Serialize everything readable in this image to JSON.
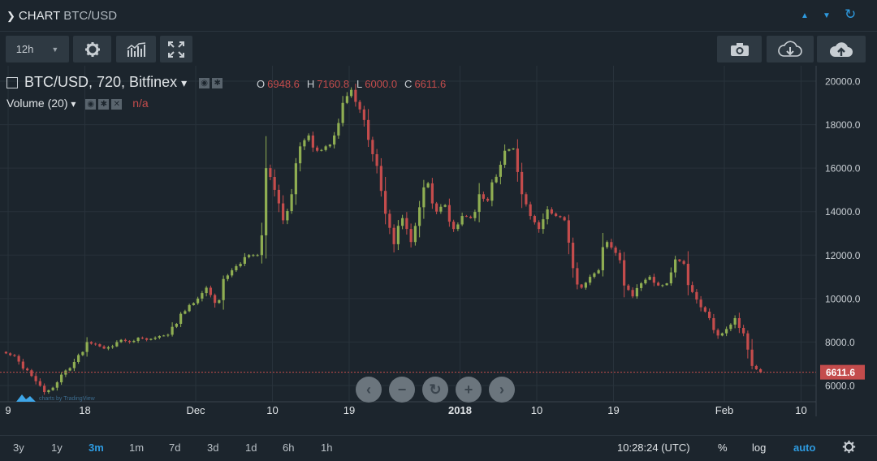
{
  "header": {
    "title": "CHART",
    "symbol": "BTC/USD",
    "controls": {
      "up": "▲",
      "down": "▼",
      "refresh": "↻"
    }
  },
  "toolbar": {
    "interval": "12h",
    "interval_arrow": "▼",
    "settings_icon": "gear-icon",
    "indicators_icon": "indicators-icon",
    "fullscreen_icon": "fullscreen-icon",
    "snapshot_icon": "camera-icon",
    "load_icon": "cloud-download-icon",
    "save_icon": "cloud-upload-icon"
  },
  "legend": {
    "main": "BTC/USD, 720, Bitfinex",
    "main_arrow": "▾",
    "ohlc": [
      {
        "key": "O",
        "value": "6948.6"
      },
      {
        "key": "H",
        "value": "7160.8"
      },
      {
        "key": "L",
        "value": "6000.0"
      },
      {
        "key": "C",
        "value": "6611.6"
      }
    ],
    "volume": "Volume (20)",
    "volume_arrow": "▾",
    "volume_value": "n/a"
  },
  "chart_data": {
    "type": "candlestick",
    "symbol": "BTC/USD",
    "interval": "720",
    "exchange": "Bitfinex",
    "ylim": [
      4700,
      20600
    ],
    "y_ticks": [
      6000,
      8000,
      10000,
      12000,
      14000,
      16000,
      18000,
      20000
    ],
    "y_tick_labels": [
      "6000.0",
      "8000.0",
      "10000.0",
      "12000.0",
      "14000.0",
      "16000.0",
      "18000.0",
      "20000.0"
    ],
    "x_ticks": [
      {
        "label": "9",
        "day": 0
      },
      {
        "label": "18",
        "day": 9
      },
      {
        "label": "Dec",
        "day": 22
      },
      {
        "label": "10",
        "day": 31
      },
      {
        "label": "19",
        "day": 40
      },
      {
        "label": "2018",
        "day": 53
      },
      {
        "label": "10",
        "day": 62
      },
      {
        "label": "19",
        "day": 71
      },
      {
        "label": "Feb",
        "day": 84
      },
      {
        "label": "10",
        "day": 93
      }
    ],
    "last_price": 6611.6,
    "last_price_label": "6611.6",
    "up_color": "#8fae52",
    "down_color": "#c44c4c",
    "closes": [
      7400,
      7100,
      6700,
      6200,
      5700,
      5900,
      6500,
      6800,
      7400,
      8000,
      7900,
      7700,
      7800,
      8100,
      8000,
      8200,
      8100,
      8200,
      8300,
      8700,
      9300,
      9700,
      10000,
      10500,
      9800,
      10900,
      11300,
      11600,
      12000,
      12000,
      16000,
      15000,
      13600,
      14800,
      17000,
      17500,
      16800,
      17000,
      17500,
      19000,
      19600,
      18700,
      17300,
      16100,
      13900,
      12500,
      13700,
      12600,
      14200,
      15300,
      14000,
      14300,
      13200,
      13800,
      13700,
      14800,
      14500,
      15600,
      16800,
      16900,
      14800,
      13800,
      13200,
      14100,
      13800,
      13600,
      11400,
      10500,
      11000,
      11300,
      12600,
      12100,
      10600,
      10100,
      10700,
      11000,
      10600,
      10700,
      11800,
      11600,
      10300,
      9600,
      9100,
      8300,
      8600,
      9100,
      8400,
      6900,
      6611.6
    ]
  },
  "navigation": {
    "back": "‹",
    "zoom_out": "−",
    "reset": "↻",
    "zoom_in": "+",
    "forward": "›"
  },
  "bottom": {
    "ranges": [
      {
        "label": "3y",
        "active": false
      },
      {
        "label": "1y",
        "active": false
      },
      {
        "label": "3m",
        "active": true
      },
      {
        "label": "1m",
        "active": false
      },
      {
        "label": "7d",
        "active": false
      },
      {
        "label": "3d",
        "active": false
      },
      {
        "label": "1d",
        "active": false
      },
      {
        "label": "6h",
        "active": false
      },
      {
        "label": "1h",
        "active": false
      }
    ],
    "clock": "10:28:24 (UTC)",
    "percent": "%",
    "log": "log",
    "auto": "auto",
    "settings_icon": "gear-icon"
  }
}
